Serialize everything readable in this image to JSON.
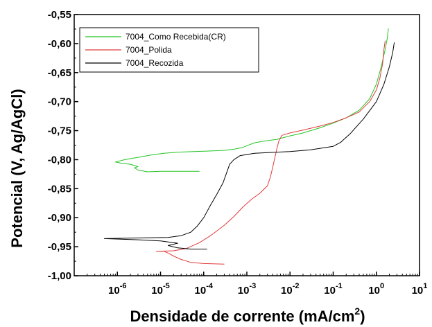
{
  "chart_data": {
    "type": "line",
    "title": "",
    "xlabel": "Densidade de corrente (mA/cm",
    "xlabel_sup": "2",
    "xlabel_close": ")",
    "ylabel": "Potencial (V, Ag/AgCl)",
    "x_scale": "log",
    "xlim": [
      1e-07,
      10
    ],
    "ylim": [
      -1.0,
      -0.55
    ],
    "x_ticks": [
      {
        "value": 1e-06,
        "base": "10",
        "exp": "-6"
      },
      {
        "value": 1e-05,
        "base": "10",
        "exp": "-5"
      },
      {
        "value": 0.0001,
        "base": "10",
        "exp": "-4"
      },
      {
        "value": 0.001,
        "base": "10",
        "exp": "-3"
      },
      {
        "value": 0.01,
        "base": "10",
        "exp": "-2"
      },
      {
        "value": 0.1,
        "base": "10",
        "exp": "-1"
      },
      {
        "value": 1,
        "base": "10",
        "exp": "0"
      },
      {
        "value": 10,
        "base": "10",
        "exp": "1"
      }
    ],
    "y_ticks": [
      {
        "value": -0.55,
        "label": "-0,55"
      },
      {
        "value": -0.6,
        "label": "-0,60"
      },
      {
        "value": -0.65,
        "label": "-0,65"
      },
      {
        "value": -0.7,
        "label": "-0,70"
      },
      {
        "value": -0.75,
        "label": "-0,75"
      },
      {
        "value": -0.8,
        "label": "-0,80"
      },
      {
        "value": -0.85,
        "label": "-0,85"
      },
      {
        "value": -0.9,
        "label": "-0,90"
      },
      {
        "value": -0.95,
        "label": "-0,95"
      },
      {
        "value": -1.0,
        "label": "-1,00"
      }
    ],
    "grid": false,
    "legend_position": "top-left",
    "series": [
      {
        "name": "7004_Como Recebida(CR)",
        "color": "#22c422",
        "points": [
          [
            8e-05,
            -0.82
          ],
          [
            3e-05,
            -0.82
          ],
          [
            1e-05,
            -0.82
          ],
          [
            5e-06,
            -0.821
          ],
          [
            3e-06,
            -0.818
          ],
          [
            2.5e-06,
            -0.814
          ],
          [
            3e-06,
            -0.812
          ],
          [
            2e-06,
            -0.808
          ],
          [
            1.2e-06,
            -0.806
          ],
          [
            9e-07,
            -0.804
          ],
          [
            1.5e-06,
            -0.8
          ],
          [
            3e-06,
            -0.796
          ],
          [
            6e-06,
            -0.792
          ],
          [
            1.2e-05,
            -0.789
          ],
          [
            2.5e-05,
            -0.787
          ],
          [
            6e-05,
            -0.786
          ],
          [
            0.00015,
            -0.785
          ],
          [
            0.0003,
            -0.784
          ],
          [
            0.0005,
            -0.782
          ],
          [
            0.0008,
            -0.779
          ],
          [
            0.001,
            -0.776
          ],
          [
            0.0015,
            -0.771
          ],
          [
            0.0025,
            -0.768
          ],
          [
            0.005,
            -0.765
          ],
          [
            0.01,
            -0.759
          ],
          [
            0.02,
            -0.754
          ],
          [
            0.05,
            -0.745
          ],
          [
            0.1,
            -0.737
          ],
          [
            0.2,
            -0.728
          ],
          [
            0.4,
            -0.715
          ],
          [
            0.7,
            -0.695
          ],
          [
            1.0,
            -0.67
          ],
          [
            1.3,
            -0.64
          ],
          [
            1.6,
            -0.61
          ],
          [
            1.8,
            -0.59
          ],
          [
            1.9,
            -0.574
          ]
        ]
      },
      {
        "name": "7004_Polida",
        "color": "#e03a3a",
        "points": [
          [
            0.0003,
            -0.98
          ],
          [
            0.0001,
            -0.979
          ],
          [
            5e-05,
            -0.977
          ],
          [
            3e-05,
            -0.972
          ],
          [
            2e-05,
            -0.966
          ],
          [
            1.5e-05,
            -0.961
          ],
          [
            1.2e-05,
            -0.958
          ],
          [
            8e-06,
            -0.958
          ],
          [
            2e-05,
            -0.957
          ],
          [
            4e-05,
            -0.953
          ],
          [
            8e-05,
            -0.943
          ],
          [
            0.00015,
            -0.93
          ],
          [
            0.0003,
            -0.913
          ],
          [
            0.0005,
            -0.898
          ],
          [
            0.0008,
            -0.882
          ],
          [
            0.0013,
            -0.868
          ],
          [
            0.002,
            -0.858
          ],
          [
            0.003,
            -0.845
          ],
          [
            0.0035,
            -0.83
          ],
          [
            0.004,
            -0.812
          ],
          [
            0.0045,
            -0.795
          ],
          [
            0.005,
            -0.78
          ],
          [
            0.0055,
            -0.768
          ],
          [
            0.0065,
            -0.758
          ],
          [
            0.01,
            -0.754
          ],
          [
            0.02,
            -0.749
          ],
          [
            0.05,
            -0.742
          ],
          [
            0.1,
            -0.736
          ],
          [
            0.2,
            -0.728
          ],
          [
            0.4,
            -0.718
          ],
          [
            0.7,
            -0.7
          ],
          [
            1.0,
            -0.68
          ],
          [
            1.2,
            -0.66
          ],
          [
            1.4,
            -0.635
          ],
          [
            1.5,
            -0.61
          ],
          [
            1.6,
            -0.595
          ]
        ]
      },
      {
        "name": "7004_Recozida",
        "color": "#000000",
        "points": [
          [
            0.00012,
            -0.954
          ],
          [
            5e-05,
            -0.954
          ],
          [
            2.5e-05,
            -0.952
          ],
          [
            1.5e-05,
            -0.948
          ],
          [
            2.5e-05,
            -0.944
          ],
          [
            1e-05,
            -0.94
          ],
          [
            3e-06,
            -0.938
          ],
          [
            5e-07,
            -0.936
          ],
          [
            3e-06,
            -0.935
          ],
          [
            1.5e-05,
            -0.934
          ],
          [
            3e-05,
            -0.931
          ],
          [
            5e-05,
            -0.925
          ],
          [
            7e-05,
            -0.915
          ],
          [
            0.0001,
            -0.9
          ],
          [
            0.00014,
            -0.88
          ],
          [
            0.0002,
            -0.86
          ],
          [
            0.00028,
            -0.84
          ],
          [
            0.00035,
            -0.82
          ],
          [
            0.0004,
            -0.808
          ],
          [
            0.0005,
            -0.8
          ],
          [
            0.0007,
            -0.793
          ],
          [
            0.0015,
            -0.789
          ],
          [
            0.005,
            -0.787
          ],
          [
            0.01,
            -0.786
          ],
          [
            0.03,
            -0.783
          ],
          [
            0.1,
            -0.777
          ],
          [
            0.15,
            -0.77
          ],
          [
            0.25,
            -0.755
          ],
          [
            0.5,
            -0.73
          ],
          [
            1.0,
            -0.7
          ],
          [
            1.5,
            -0.67
          ],
          [
            2.0,
            -0.64
          ],
          [
            2.4,
            -0.615
          ],
          [
            2.6,
            -0.598
          ]
        ]
      }
    ]
  }
}
